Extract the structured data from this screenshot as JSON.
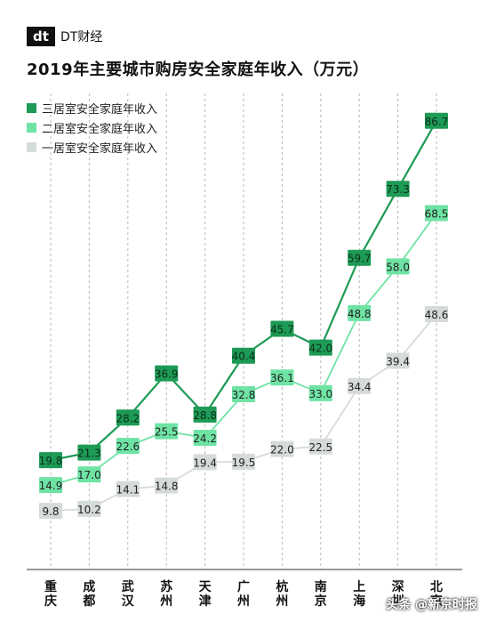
{
  "brand": {
    "mark": "dt",
    "name": "DT财经"
  },
  "chart_data": {
    "type": "line",
    "title": "2019年主要城市购房安全家庭年收入（万元）",
    "categories": [
      "重庆",
      "成都",
      "武汉",
      "苏州",
      "天津",
      "广州",
      "杭州",
      "南京",
      "上海",
      "深圳",
      "北京"
    ],
    "series": [
      {
        "name": "三居室安全家庭年收入",
        "color": "#1d9a55",
        "values": [
          19.8,
          21.3,
          28.2,
          36.9,
          28.8,
          40.4,
          45.7,
          42.0,
          59.7,
          73.3,
          86.7
        ]
      },
      {
        "name": "二居室安全家庭年收入",
        "color": "#6ee3a4",
        "values": [
          14.9,
          17.0,
          22.6,
          25.5,
          24.2,
          32.8,
          36.1,
          33.0,
          48.8,
          58.0,
          68.5
        ]
      },
      {
        "name": "一居室安全家庭年收入",
        "color": "#d5dbd8",
        "values": [
          9.8,
          10.2,
          14.1,
          14.8,
          19.4,
          19.5,
          22.0,
          22.5,
          34.4,
          39.4,
          48.6
        ]
      }
    ],
    "ylim": [
      0,
      90
    ],
    "grid": "vertical dashed",
    "legend": "top-left"
  },
  "watermark": "头条 @新京时报"
}
